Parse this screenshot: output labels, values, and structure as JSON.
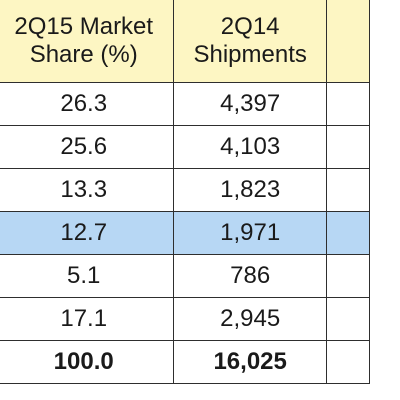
{
  "chart_data": {
    "type": "table",
    "columns": [
      {
        "line1": "2Q15 Market",
        "line2": "Share (%)"
      },
      {
        "line1": "2Q14",
        "line2": "Shipments"
      }
    ],
    "rows": [
      {
        "values": [
          "26.3",
          "4,397"
        ],
        "highlight": false,
        "bold": false
      },
      {
        "values": [
          "25.6",
          "4,103"
        ],
        "highlight": false,
        "bold": false
      },
      {
        "values": [
          "13.3",
          "1,823"
        ],
        "highlight": false,
        "bold": false
      },
      {
        "values": [
          "12.7",
          "1,971"
        ],
        "highlight": true,
        "bold": false
      },
      {
        "values": [
          "5.1",
          "786"
        ],
        "highlight": false,
        "bold": false
      },
      {
        "values": [
          "17.1",
          "2,945"
        ],
        "highlight": false,
        "bold": false
      },
      {
        "values": [
          "100.0",
          "16,025"
        ],
        "highlight": false,
        "bold": true
      }
    ],
    "colors": {
      "header_background": "#fdf6c3",
      "highlight_background": "#b7d7f4",
      "border": "#2e2e2e"
    }
  }
}
